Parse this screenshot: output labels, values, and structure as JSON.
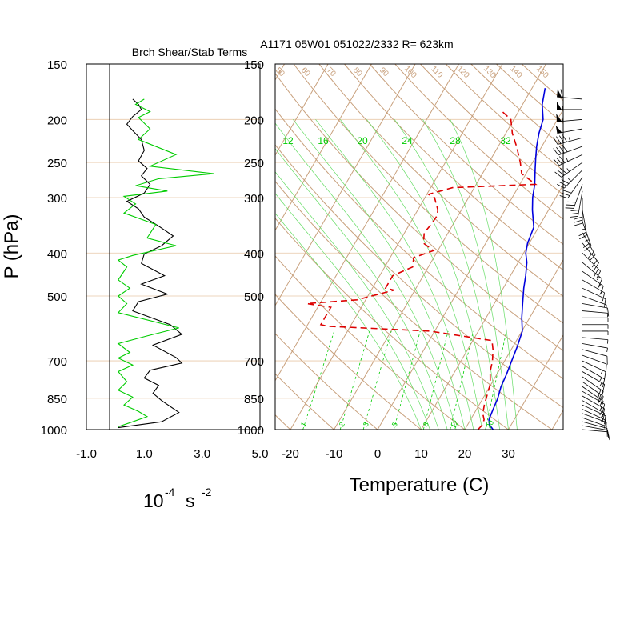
{
  "header": {
    "left_title": "Brch Shear/Stab Terms",
    "main_title": "A1171 05W01 051022/2332 R= 623km"
  },
  "axes": {
    "pressure_label": "P (hPa)",
    "left_xlabel_base": "10",
    "left_xlabel_exp": "-4",
    "left_xlabel_unit": "s",
    "left_xlabel_unit_exp": "-2",
    "temp_xlabel": "Temperature (C)"
  },
  "chart_data": [
    {
      "type": "line",
      "title": "Brch Shear/Stab Terms",
      "xlabel": "10^-4 s^-2",
      "ylabel": "P (hPa)",
      "y_scale": "log",
      "xlim": [
        -1.0,
        5.0
      ],
      "ylim": [
        1000,
        150
      ],
      "x_ticks": [
        "-1.0",
        "1.0",
        "3.0",
        "5.0"
      ],
      "x_tick_values": [
        -1,
        1,
        3,
        5
      ],
      "y_ticks": [
        "150",
        "200",
        "250",
        "300",
        "400",
        "500",
        "700",
        "850",
        "1000"
      ],
      "y_tick_values": [
        150,
        200,
        250,
        300,
        400,
        500,
        700,
        850,
        1000
      ],
      "series": [
        {
          "color": "#000000",
          "points": [
            [
              0.6,
              180
            ],
            [
              0.8,
              185
            ],
            [
              0.9,
              190
            ],
            [
              0.6,
              197
            ],
            [
              0.4,
              205
            ],
            [
              0.6,
              212
            ],
            [
              0.9,
              222
            ],
            [
              1.0,
              235
            ],
            [
              0.8,
              248
            ],
            [
              1.1,
              258
            ],
            [
              0.9,
              268
            ],
            [
              1.2,
              280
            ],
            [
              1.0,
              293
            ],
            [
              0.4,
              306
            ],
            [
              0.8,
              318
            ],
            [
              1.0,
              332
            ],
            [
              1.5,
              348
            ],
            [
              2.0,
              366
            ],
            [
              1.6,
              385
            ],
            [
              1.0,
              402
            ],
            [
              0.9,
              422
            ],
            [
              1.7,
              450
            ],
            [
              0.9,
              470
            ],
            [
              1.8,
              495
            ],
            [
              0.8,
              515
            ],
            [
              0.6,
              540
            ],
            [
              1.9,
              580
            ],
            [
              2.3,
              610
            ],
            [
              1.3,
              645
            ],
            [
              2.1,
              688
            ],
            [
              2.3,
              708
            ],
            [
              1.2,
              735
            ],
            [
              1.0,
              765
            ],
            [
              1.5,
              795
            ],
            [
              1.3,
              828
            ],
            [
              1.6,
              860
            ],
            [
              2.2,
              915
            ],
            [
              1.6,
              960
            ],
            [
              0.1,
              990
            ]
          ]
        },
        {
          "color": "#00cc00",
          "points": [
            [
              1.0,
              180
            ],
            [
              0.7,
              185
            ],
            [
              1.2,
              192
            ],
            [
              0.8,
              198
            ],
            [
              1.2,
              210
            ],
            [
              0.8,
              222
            ],
            [
              2.1,
              240
            ],
            [
              1.2,
              255
            ],
            [
              3.4,
              265
            ],
            [
              1.5,
              272
            ],
            [
              0.7,
              282
            ],
            [
              1.8,
              290
            ],
            [
              0.3,
              298
            ],
            [
              0.7,
              310
            ],
            [
              0.3,
              325
            ],
            [
              1.4,
              345
            ],
            [
              1.1,
              370
            ],
            [
              2.1,
              385
            ],
            [
              0.6,
              405
            ],
            [
              0.1,
              415
            ],
            [
              0.4,
              430
            ],
            [
              0.1,
              460
            ],
            [
              0.5,
              480
            ],
            [
              0.1,
              500
            ],
            [
              0.4,
              520
            ],
            [
              0.1,
              545
            ],
            [
              2.2,
              590
            ],
            [
              1.1,
              615
            ],
            [
              0.1,
              640
            ],
            [
              0.5,
              670
            ],
            [
              0.1,
              690
            ],
            [
              0.6,
              715
            ],
            [
              0.1,
              740
            ],
            [
              0.4,
              780
            ],
            [
              0.1,
              815
            ],
            [
              0.6,
              845
            ],
            [
              0.3,
              880
            ],
            [
              0.8,
              910
            ],
            [
              1.1,
              935
            ],
            [
              0.6,
              960
            ],
            [
              0.1,
              985
            ]
          ]
        }
      ]
    },
    {
      "type": "line",
      "title": "A1171 05W01 051022/2332 R= 623km",
      "xlabel": "Temperature (C)",
      "ylabel": "P (hPa)",
      "y_scale": "log",
      "skew_t": true,
      "xlim": [
        -25,
        40
      ],
      "ylim": [
        1000,
        150
      ],
      "x_ticks": [
        "-20",
        "-10",
        "0",
        "10",
        "20",
        "30"
      ],
      "x_tick_values": [
        -20,
        -10,
        0,
        10,
        20,
        30
      ],
      "series": [
        {
          "color": "#0000dd",
          "dash": "solid",
          "points": [
            [
              26.5,
              1000
            ],
            [
              25.0,
              975
            ],
            [
              24.2,
              950
            ],
            [
              23.8,
              900
            ],
            [
              23.4,
              850
            ],
            [
              22.6,
              800
            ],
            [
              22.2,
              750
            ],
            [
              21.6,
              700
            ],
            [
              21.0,
              650
            ],
            [
              20.1,
              600
            ],
            [
              18.2,
              560
            ],
            [
              16.5,
              520
            ],
            [
              14.7,
              480
            ],
            [
              13.5,
              450
            ],
            [
              12.0,
              420
            ],
            [
              10.5,
              400
            ],
            [
              9.6,
              380
            ],
            [
              8.9,
              350
            ],
            [
              6.3,
              320
            ],
            [
              4.7,
              300
            ],
            [
              3.4,
              280
            ],
            [
              1.6,
              260
            ],
            [
              0.2,
              245
            ],
            [
              -1.2,
              230
            ],
            [
              -2.4,
              215
            ],
            [
              -3.3,
              200
            ],
            [
              -5.5,
              185
            ],
            [
              -7.0,
              170
            ]
          ]
        },
        {
          "color": "#dd0000",
          "dash": "dashed",
          "points": [
            [
              23.0,
              1000
            ],
            [
              23.4,
              975
            ],
            [
              23.1,
              950
            ],
            [
              22.0,
              920
            ],
            [
              21.2,
              880
            ],
            [
              20.6,
              840
            ],
            [
              19.8,
              790
            ],
            [
              18.1,
              740
            ],
            [
              17.2,
              700
            ],
            [
              15.8,
              660
            ],
            [
              14.4,
              630
            ],
            [
              -1.1,
              600
            ],
            [
              -25.2,
              585
            ],
            [
              -27.0,
              580
            ],
            [
              -27.0,
              530
            ],
            [
              -33.0,
              520
            ],
            [
              -22.0,
              510
            ],
            [
              -14.8,
              485
            ],
            [
              -17.0,
              480
            ],
            [
              -17.0,
              450
            ],
            [
              -13.6,
              430
            ],
            [
              -14.6,
              410
            ],
            [
              -11.0,
              395
            ],
            [
              -14.3,
              380
            ],
            [
              -15.5,
              360
            ],
            [
              -15.0,
              345
            ],
            [
              -14.8,
              330
            ],
            [
              -15.4,
              320
            ],
            [
              -17.8,
              300
            ],
            [
              -19.6,
              295
            ],
            [
              -15.0,
              285
            ],
            [
              3.6,
              280
            ],
            [
              -1.0,
              265
            ],
            [
              -2.8,
              250
            ],
            [
              -5.8,
              230
            ],
            [
              -8.5,
              215
            ],
            [
              -10.7,
              200
            ],
            [
              -14.5,
              190
            ]
          ]
        }
      ],
      "reference_lines": {
        "dry_adiabat_labels": [
          "30",
          "40",
          "50",
          "60",
          "70",
          "80",
          "90",
          "100",
          "110",
          "120",
          "130",
          "140",
          "150"
        ],
        "mixing_ratio_labels": [
          "1",
          "2",
          "3",
          "5",
          "8",
          "12",
          "20"
        ],
        "moist_adiabat_labels": [
          "12",
          "16",
          "20",
          "24",
          "28",
          "32"
        ],
        "colors": {
          "isotherm": "#c8a07c",
          "moist_adiabat": "#00cc00",
          "mixing_ratio": "#00cc00"
        }
      }
    }
  ],
  "wind_barbs": {
    "color": "#000000",
    "levels": [
      1000,
      980,
      960,
      940,
      920,
      900,
      880,
      860,
      840,
      820,
      800,
      780,
      760,
      740,
      720,
      700,
      680,
      660,
      640,
      620,
      600,
      580,
      560,
      540,
      520,
      500,
      480,
      460,
      440,
      420,
      400,
      380,
      360,
      340,
      320,
      300,
      290,
      280,
      270,
      260,
      250,
      240,
      230,
      220,
      210,
      200,
      190,
      180
    ],
    "direction_deg": [
      95,
      100,
      105,
      110,
      110,
      115,
      115,
      120,
      120,
      120,
      125,
      125,
      125,
      120,
      120,
      115,
      110,
      105,
      100,
      95,
      90,
      90,
      90,
      95,
      100,
      110,
      115,
      120,
      125,
      130,
      135,
      140,
      150,
      160,
      170,
      180,
      190,
      200,
      215,
      225,
      235,
      245,
      250,
      255,
      260,
      265,
      270,
      275
    ],
    "speed_kt": [
      10,
      12,
      12,
      14,
      14,
      15,
      15,
      16,
      16,
      18,
      18,
      20,
      20,
      18,
      16,
      15,
      12,
      10,
      8,
      6,
      5,
      5,
      6,
      8,
      10,
      12,
      14,
      15,
      16,
      18,
      20,
      22,
      24,
      26,
      28,
      30,
      30,
      32,
      32,
      35,
      35,
      35,
      40,
      45,
      50,
      55,
      55,
      60
    ]
  }
}
